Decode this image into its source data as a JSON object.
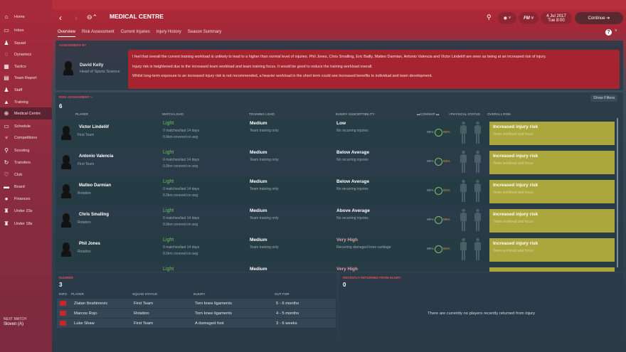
{
  "sidebar": {
    "items": [
      {
        "label": "Home",
        "icon": "home-icon",
        "glyph": "⌂"
      },
      {
        "label": "Inbox",
        "icon": "inbox-icon",
        "glyph": "▭"
      },
      {
        "label": "Squad",
        "icon": "squad-icon",
        "glyph": "♟"
      },
      {
        "label": "Dynamics",
        "icon": "dynamics-icon",
        "glyph": "◌"
      },
      {
        "label": "Tactics",
        "icon": "tactics-icon",
        "glyph": "▦"
      },
      {
        "label": "Team Report",
        "icon": "report-icon",
        "glyph": "▤"
      },
      {
        "label": "Staff",
        "icon": "staff-icon",
        "glyph": "♟"
      },
      {
        "label": "Training",
        "icon": "training-icon",
        "glyph": "▲"
      },
      {
        "label": "Medical Centre",
        "icon": "medical-icon",
        "glyph": "⊕"
      },
      {
        "label": "Schedule",
        "icon": "schedule-icon",
        "glyph": "▭"
      },
      {
        "label": "Competitions",
        "icon": "trophy-icon",
        "glyph": "♆"
      },
      {
        "label": "Scouting",
        "icon": "scouting-icon",
        "glyph": "⚲"
      },
      {
        "label": "Transfers",
        "icon": "transfers-icon",
        "glyph": "↻"
      },
      {
        "label": "Club",
        "icon": "club-icon",
        "glyph": "♡"
      },
      {
        "label": "Board",
        "icon": "board-icon",
        "glyph": "▬"
      },
      {
        "label": "Finances",
        "icon": "finances-icon",
        "glyph": "●"
      },
      {
        "label": "Under 23s",
        "icon": "u23-icon",
        "glyph": "♜"
      },
      {
        "label": "Under 18s",
        "icon": "u18-icon",
        "glyph": "♜"
      }
    ],
    "active": "Medical Centre",
    "next_match_label": "NEXT MATCH",
    "next_match": "Sloven (A)"
  },
  "header": {
    "title": "MEDICAL CENTRE",
    "date": "4 Jul 2017",
    "time": "Tue 8:00",
    "continue": "Continue"
  },
  "tabs": [
    "Overview",
    "Risk Assessment",
    "Current Injuries",
    "Injury History",
    "Season Summary"
  ],
  "assessment": {
    "label": "ASSESSMENT BY",
    "name": "David Kelly",
    "role": "Head of Sports Science",
    "lines": [
      "I feel that overall the current training workload is unlikely to lead to a higher than normal level of injuries. Phil Jones, Chris Smalling, Eric Bailly, Matteo Darmian, Antonio Valencia and Victor Lindelöf are seen as being at an increased risk of injury.",
      "Injury risk is heightened due to the increased team workload and team training focus. It would be good to reduce the training workload overall.",
      "Whilst long-term exposure to an increased injury risk is not recommended, a heavier workload in the short term could see increased benefits to individual and team development."
    ]
  },
  "risk": {
    "label": "RISK ASSESSMENT >",
    "count": "6",
    "show_filters": "Show Filters",
    "columns": [
      "PLAYER",
      "MATCH LOAD",
      "TRAINING LOAD",
      "INJURY SUSCEPTIBILITY",
      "CON/SHP",
      "PHYSICAL STATUS",
      "OVERALL RISK"
    ],
    "rows": [
      {
        "name": "Victor Lindelöf",
        "status": "First Team",
        "match": "Light",
        "m1": "0 matches/last 14 days",
        "m2": "0.0km covered on avg",
        "train": "Medium",
        "t1": "Team training only",
        "sus": "Low",
        "s1": "No recurring injuries",
        "con": "99%",
        "shp": "62%",
        "risk": "Increased injury risk",
        "r1": "Team workload and focus"
      },
      {
        "name": "Antonio Valencia",
        "status": "First Team",
        "match": "Light",
        "m1": "0 matches/last 14 days",
        "m2": "0.0km covered on avg",
        "train": "Medium",
        "t1": "Team training only",
        "sus": "Below Average",
        "s1": "No recurring injuries",
        "con": "99%",
        "shp": "63%",
        "risk": "Increased injury risk",
        "r1": "Team workload and focus"
      },
      {
        "name": "Matteo Darmian",
        "status": "Rotation",
        "match": "Light",
        "m1": "0 matches/last 14 days",
        "m2": "0.0km covered on avg",
        "train": "Medium",
        "t1": "Team training only",
        "sus": "Below Average",
        "s1": "No recurring injuries",
        "con": "99%",
        "shp": "61%",
        "risk": "Increased injury risk",
        "r1": "Team workload and focus"
      },
      {
        "name": "Chris Smalling",
        "status": "Rotation",
        "match": "Light",
        "m1": "0 matches/last 14 days",
        "m2": "0.0km covered on avg",
        "train": "Medium",
        "t1": "Team training only",
        "sus": "Above Average",
        "s1": "No recurring injuries",
        "con": "98%",
        "shp": "59%",
        "risk": "Increased injury risk",
        "r1": "Team workload and focus"
      },
      {
        "name": "Phil Jones",
        "status": "Rotation",
        "match": "Light",
        "m1": "0 matches/last 14 days",
        "m2": "0.0km covered on avg",
        "train": "Medium",
        "t1": "Team training only",
        "sus": "Very High",
        "s1": "Recurring damaged knee cartilage",
        "con": "98%",
        "shp": "61%",
        "risk": "Increased injury risk",
        "r1": "Team workload and focus"
      },
      {
        "name": "",
        "status": "",
        "match": "Light",
        "m1": "",
        "m2": "",
        "train": "Medium",
        "t1": "",
        "sus": "Very High",
        "s1": "",
        "con": "",
        "shp": "",
        "risk": "",
        "r1": ""
      }
    ]
  },
  "injured": {
    "label": "INJURED",
    "count": "3",
    "columns": [
      "INFO",
      "PLAYER",
      "SQUAD STATUS",
      "INJURY",
      "OUT FOR"
    ],
    "rows": [
      {
        "name": "Zlatan Ibrahimovic",
        "status": "First Team",
        "injury": "Torn knee ligaments",
        "out": "5 - 6 months"
      },
      {
        "name": "Marcos Rojo",
        "status": "Rotation",
        "injury": "Torn knee ligaments",
        "out": "4 - 5 months"
      },
      {
        "name": "Luke Shaw",
        "status": "First Team",
        "injury": "A damaged foot",
        "out": "3 - 6 weeks"
      }
    ]
  },
  "returned": {
    "label": "RECENTLY RETURNED FROM INJURY",
    "count": "0",
    "empty": "There are currently no players recently returned from injury"
  },
  "colors": {
    "accent": "#a5242f",
    "risk": "#aba73c",
    "light": "#6cc060",
    "very_high": "#e0a0a6"
  }
}
